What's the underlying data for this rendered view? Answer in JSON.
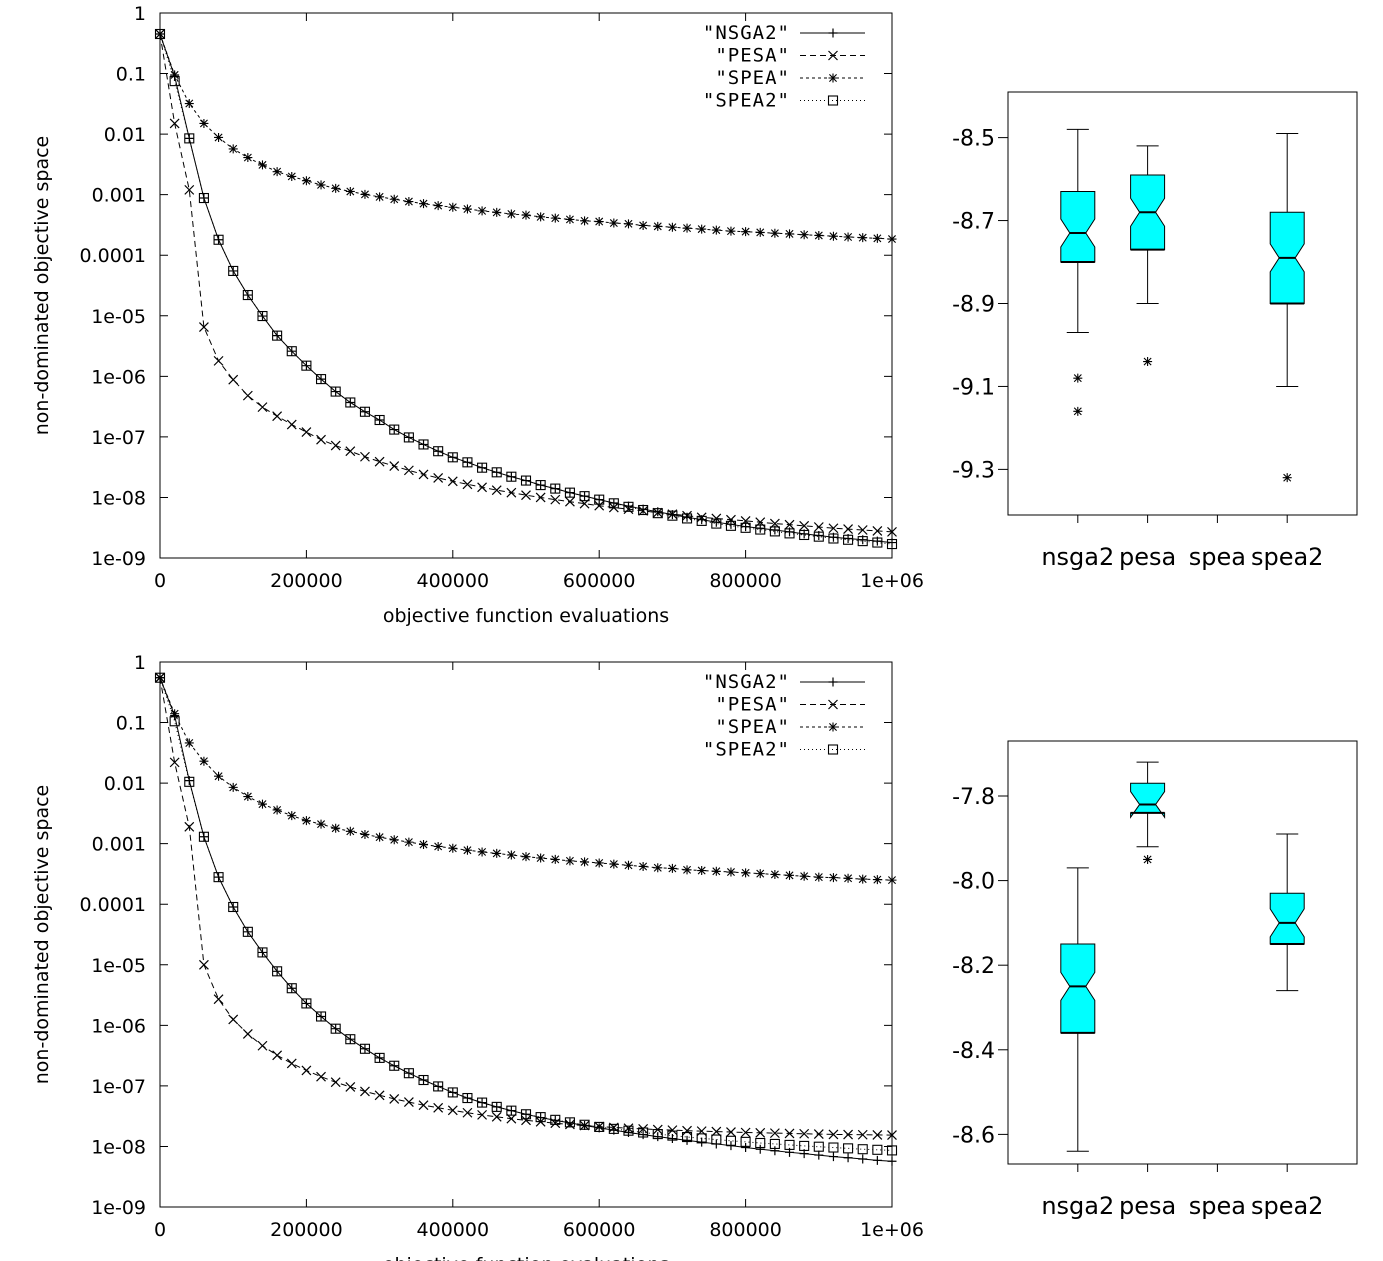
{
  "chart_data": [
    {
      "type": "line",
      "xlabel": "objective function evaluations",
      "ylabel": "non-dominated objective space",
      "ylog": true,
      "xlim": [
        0,
        1000000
      ],
      "ylim": [
        1e-09,
        1
      ],
      "x_ticks": [
        "0",
        "200000",
        "400000",
        "600000",
        "800000",
        "1e+06"
      ],
      "y_ticks": [
        "1",
        "0.1",
        "0.01",
        "0.001",
        "0.0001",
        "1e-05",
        "1e-06",
        "1e-07",
        "1e-08",
        "1e-09"
      ],
      "legend_position": "top-right",
      "colors": {
        "lines": "#000000"
      },
      "x": [
        0,
        20000,
        40000,
        60000,
        80000,
        100000,
        120000,
        140000,
        160000,
        180000,
        200000,
        220000,
        240000,
        260000,
        280000,
        300000,
        320000,
        340000,
        360000,
        380000,
        400000,
        420000,
        440000,
        460000,
        480000,
        500000,
        520000,
        540000,
        560000,
        580000,
        600000,
        620000,
        640000,
        660000,
        680000,
        700000,
        720000,
        740000,
        760000,
        780000,
        800000,
        820000,
        840000,
        860000,
        880000,
        900000,
        920000,
        940000,
        960000,
        980000,
        1000000
      ],
      "series": [
        {
          "name": "\"NSGA2\"",
          "marker": "plus",
          "dash": "",
          "values": [
            0.45,
            0.09,
            0.0085,
            0.00088,
            0.00018,
            5.5e-05,
            2.2e-05,
            9.9e-06,
            4.7e-06,
            2.6e-06,
            1.5e-06,
            9e-07,
            5.6e-07,
            3.7e-07,
            2.6e-07,
            1.9e-07,
            1.32e-07,
            9.8e-08,
            7.5e-08,
            5.8e-08,
            4.6e-08,
            3.8e-08,
            3.1e-08,
            2.6e-08,
            2.2e-08,
            1.9e-08,
            1.6e-08,
            1.4e-08,
            1.2e-08,
            1.05e-08,
            9.2e-09,
            8.1e-09,
            7.2e-09,
            6.4e-09,
            5.8e-09,
            5.2e-09,
            4.7e-09,
            4.3e-09,
            3.9e-09,
            3.6e-09,
            3.3e-09,
            3.1e-09,
            2.9e-09,
            2.7e-09,
            2.5e-09,
            2.35e-09,
            2.2e-09,
            2.1e-09,
            2e-09,
            1.9e-09,
            1.8e-09
          ]
        },
        {
          "name": "\"PESA\"",
          "marker": "cross",
          "dash": "6 4",
          "values": [
            0.45,
            0.015,
            0.0012,
            6.5e-06,
            1.8e-06,
            8.8e-07,
            4.8e-07,
            3.1e-07,
            2.2e-07,
            1.6e-07,
            1.2e-07,
            9e-08,
            7.2e-08,
            5.8e-08,
            4.7e-08,
            3.9e-08,
            3.3e-08,
            2.8e-08,
            2.4e-08,
            2.1e-08,
            1.85e-08,
            1.65e-08,
            1.47e-08,
            1.32e-08,
            1.2e-08,
            1.09e-08,
            1e-08,
            9.2e-09,
            8.5e-09,
            7.9e-09,
            7.3e-09,
            6.8e-09,
            6.4e-09,
            6e-09,
            5.6e-09,
            5.3e-09,
            5e-09,
            4.7e-09,
            4.5e-09,
            4.3e-09,
            4.1e-09,
            3.9e-09,
            3.7e-09,
            3.55e-09,
            3.4e-09,
            3.25e-09,
            3.1e-09,
            3e-09,
            2.9e-09,
            2.8e-09,
            2.7e-09
          ]
        },
        {
          "name": "\"SPEA\"",
          "marker": "star",
          "dash": "3 3",
          "values": [
            0.45,
            0.095,
            0.032,
            0.015,
            0.0088,
            0.0057,
            0.0041,
            0.0031,
            0.0024,
            0.002,
            0.0017,
            0.00145,
            0.00127,
            0.00113,
            0.00101,
            0.00092,
            0.00084,
            0.00077,
            0.00071,
            0.00066,
            0.00062,
            0.00058,
            0.00054,
            0.00051,
            0.00048,
            0.00046,
            0.00043,
            0.00041,
            0.00039,
            0.00037,
            0.00036,
            0.00034,
            0.00033,
            0.00031,
            0.0003,
            0.00029,
            0.00028,
            0.00027,
            0.00026,
            0.00025,
            0.000245,
            0.000238,
            0.000231,
            0.000225,
            0.000218,
            0.000212,
            0.000206,
            0.0002,
            0.000195,
            0.00019,
            0.000185
          ]
        },
        {
          "name": "\"SPEA2\"",
          "marker": "square",
          "dash": "1 3",
          "values": [
            0.45,
            0.075,
            0.0085,
            0.00088,
            0.00018,
            5.5e-05,
            2.2e-05,
            9.9e-06,
            4.7e-06,
            2.6e-06,
            1.5e-06,
            9e-07,
            5.6e-07,
            3.7e-07,
            2.6e-07,
            1.9e-07,
            1.32e-07,
            9.8e-08,
            7.5e-08,
            5.8e-08,
            4.6e-08,
            3.8e-08,
            3.1e-08,
            2.6e-08,
            2.2e-08,
            1.9e-08,
            1.6e-08,
            1.4e-08,
            1.2e-08,
            1.05e-08,
            9.2e-09,
            8e-09,
            7e-09,
            6.2e-09,
            5.5e-09,
            5e-09,
            4.5e-09,
            4.1e-09,
            3.7e-09,
            3.4e-09,
            3.15e-09,
            2.95e-09,
            2.75e-09,
            2.55e-09,
            2.4e-09,
            2.25e-09,
            2.1e-09,
            2e-09,
            1.9e-09,
            1.8e-09,
            1.7e-09
          ]
        }
      ]
    },
    {
      "type": "boxplot",
      "categories": [
        "nsga2",
        "pesa",
        "spea",
        "spea2"
      ],
      "ylim": [
        -9.41,
        -8.39
      ],
      "y_ticks": [
        "-8.5",
        "-8.7",
        "-8.9",
        "-9.1",
        "-9.3"
      ],
      "box_color": "#00ffff",
      "boxes": [
        {
          "category": "nsga2",
          "whisker_high": -8.48,
          "q3": -8.63,
          "median": -8.73,
          "q1": -8.8,
          "whisker_low": -8.97,
          "outliers": [
            -9.08,
            -9.16
          ]
        },
        {
          "category": "pesa",
          "whisker_high": -8.52,
          "q3": -8.59,
          "median": -8.68,
          "q1": -8.77,
          "whisker_low": -8.9,
          "outliers": [
            -9.04
          ]
        },
        {
          "category": "spea",
          "whisker_high": null,
          "q3": null,
          "median": null,
          "q1": null,
          "whisker_low": null,
          "outliers": []
        },
        {
          "category": "spea2",
          "whisker_high": -8.49,
          "q3": -8.68,
          "median": -8.79,
          "q1": -8.9,
          "whisker_low": -9.1,
          "outliers": [
            -9.32
          ]
        }
      ]
    },
    {
      "type": "line",
      "xlabel": "objective function evaluations",
      "ylabel": "non-dominated objective space",
      "ylog": true,
      "xlim": [
        0,
        1000000
      ],
      "ylim": [
        1e-09,
        1
      ],
      "x_ticks": [
        "0",
        "200000",
        "400000",
        "600000",
        "800000",
        "1e+06"
      ],
      "y_ticks": [
        "1",
        "0.1",
        "0.01",
        "0.001",
        "0.0001",
        "1e-05",
        "1e-06",
        "1e-07",
        "1e-08",
        "1e-09"
      ],
      "legend_position": "top-right",
      "colors": {
        "lines": "#000000"
      },
      "x": [
        0,
        20000,
        40000,
        60000,
        80000,
        100000,
        120000,
        140000,
        160000,
        180000,
        200000,
        220000,
        240000,
        260000,
        280000,
        300000,
        320000,
        340000,
        360000,
        380000,
        400000,
        420000,
        440000,
        460000,
        480000,
        500000,
        520000,
        540000,
        560000,
        580000,
        600000,
        620000,
        640000,
        660000,
        680000,
        700000,
        720000,
        740000,
        760000,
        780000,
        800000,
        820000,
        840000,
        860000,
        880000,
        900000,
        920000,
        940000,
        960000,
        980000,
        1000000
      ],
      "series": [
        {
          "name": "\"NSGA2\"",
          "marker": "plus",
          "dash": "",
          "values": [
            0.55,
            0.13,
            0.011,
            0.0013,
            0.00028,
            9e-05,
            3.5e-05,
            1.6e-05,
            7.8e-06,
            4.1e-06,
            2.3e-06,
            1.4e-06,
            8.8e-07,
            5.9e-07,
            4.1e-07,
            2.9e-07,
            2.15e-07,
            1.62e-07,
            1.25e-07,
            9.8e-08,
            7.8e-08,
            6.3e-08,
            5.3e-08,
            4.5e-08,
            3.9e-08,
            3.4e-08,
            3e-08,
            2.7e-08,
            2.45e-08,
            2.22e-08,
            2.03e-08,
            1.86e-08,
            1.7e-08,
            1.57e-08,
            1.45e-08,
            1.35e-08,
            1.26e-08,
            1.18e-08,
            1.1e-08,
            1.03e-08,
            9.6e-09,
            9e-09,
            8.5e-09,
            8e-09,
            7.6e-09,
            7.2e-09,
            6.8e-09,
            6.5e-09,
            6.2e-09,
            5.9e-09,
            5.7e-09
          ]
        },
        {
          "name": "\"PESA\"",
          "marker": "cross",
          "dash": "6 4",
          "values": [
            0.55,
            0.022,
            0.0019,
            1e-05,
            2.7e-06,
            1.25e-06,
            7.2e-07,
            4.6e-07,
            3.2e-07,
            2.35e-07,
            1.8e-07,
            1.42e-07,
            1.15e-07,
            9.6e-08,
            8.1e-08,
            7e-08,
            6.1e-08,
            5.4e-08,
            4.8e-08,
            4.35e-08,
            3.95e-08,
            3.6e-08,
            3.32e-08,
            3.08e-08,
            2.87e-08,
            2.7e-08,
            2.55e-08,
            2.42e-08,
            2.31e-08,
            2.21e-08,
            2.13e-08,
            2.06e-08,
            2e-08,
            1.95e-08,
            1.9e-08,
            1.86e-08,
            1.82e-08,
            1.79e-08,
            1.76e-08,
            1.73e-08,
            1.7e-08,
            1.68e-08,
            1.66e-08,
            1.64e-08,
            1.62e-08,
            1.6e-08,
            1.58e-08,
            1.57e-08,
            1.56e-08,
            1.55e-08,
            1.54e-08
          ]
        },
        {
          "name": "\"SPEA\"",
          "marker": "star",
          "dash": "3 3",
          "values": [
            0.55,
            0.14,
            0.046,
            0.023,
            0.013,
            0.0085,
            0.006,
            0.0045,
            0.0036,
            0.0029,
            0.0024,
            0.0021,
            0.0018,
            0.0016,
            0.00142,
            0.00128,
            0.00116,
            0.00106,
            0.00097,
            0.0009,
            0.00084,
            0.00078,
            0.00073,
            0.00069,
            0.00065,
            0.00061,
            0.00058,
            0.00055,
            0.00052,
            0.0005,
            0.00048,
            0.00046,
            0.00044,
            0.00042,
            0.0004,
            0.00039,
            0.00037,
            0.00036,
            0.00035,
            0.00034,
            0.00033,
            0.00032,
            0.00031,
            0.0003,
            0.00029,
            0.00028,
            0.000275,
            0.000268,
            0.00026,
            0.000255,
            0.00025
          ]
        },
        {
          "name": "\"SPEA2\"",
          "marker": "square",
          "dash": "1 3",
          "values": [
            0.55,
            0.105,
            0.0105,
            0.0013,
            0.00028,
            9e-05,
            3.5e-05,
            1.6e-05,
            7.8e-06,
            4.1e-06,
            2.3e-06,
            1.4e-06,
            8.8e-07,
            5.9e-07,
            4.1e-07,
            2.9e-07,
            2.15e-07,
            1.62e-07,
            1.25e-07,
            9.8e-08,
            7.8e-08,
            6.3e-08,
            5.3e-08,
            4.5e-08,
            3.9e-08,
            3.4e-08,
            3.05e-08,
            2.75e-08,
            2.5e-08,
            2.28e-08,
            2.1e-08,
            1.95e-08,
            1.82e-08,
            1.7e-08,
            1.6e-08,
            1.51e-08,
            1.43e-08,
            1.36e-08,
            1.3e-08,
            1.24e-08,
            1.19e-08,
            1.14e-08,
            1.1e-08,
            1.06e-08,
            1.02e-08,
            9.9e-09,
            9.6e-09,
            9.3e-09,
            9e-09,
            8.8e-09,
            8.6e-09
          ]
        }
      ]
    },
    {
      "type": "boxplot",
      "categories": [
        "nsga2",
        "pesa",
        "spea",
        "spea2"
      ],
      "ylim": [
        -8.67,
        -7.67
      ],
      "y_ticks": [
        "-7.8",
        "-8.0",
        "-8.2",
        "-8.4",
        "-8.6"
      ],
      "box_color": "#00ffff",
      "boxes": [
        {
          "category": "nsga2",
          "whisker_high": -7.97,
          "q3": -8.15,
          "median": -8.25,
          "q1": -8.36,
          "whisker_low": -8.64,
          "outliers": []
        },
        {
          "category": "pesa",
          "whisker_high": -7.72,
          "q3": -7.77,
          "median": -7.82,
          "q1": -7.84,
          "whisker_low": -7.92,
          "outliers": [
            -7.95
          ]
        },
        {
          "category": "spea",
          "whisker_high": null,
          "q3": null,
          "median": null,
          "q1": null,
          "whisker_low": null,
          "outliers": []
        },
        {
          "category": "spea2",
          "whisker_high": -7.89,
          "q3": -8.03,
          "median": -8.1,
          "q1": -8.15,
          "whisker_low": -8.26,
          "outliers": []
        }
      ]
    }
  ]
}
